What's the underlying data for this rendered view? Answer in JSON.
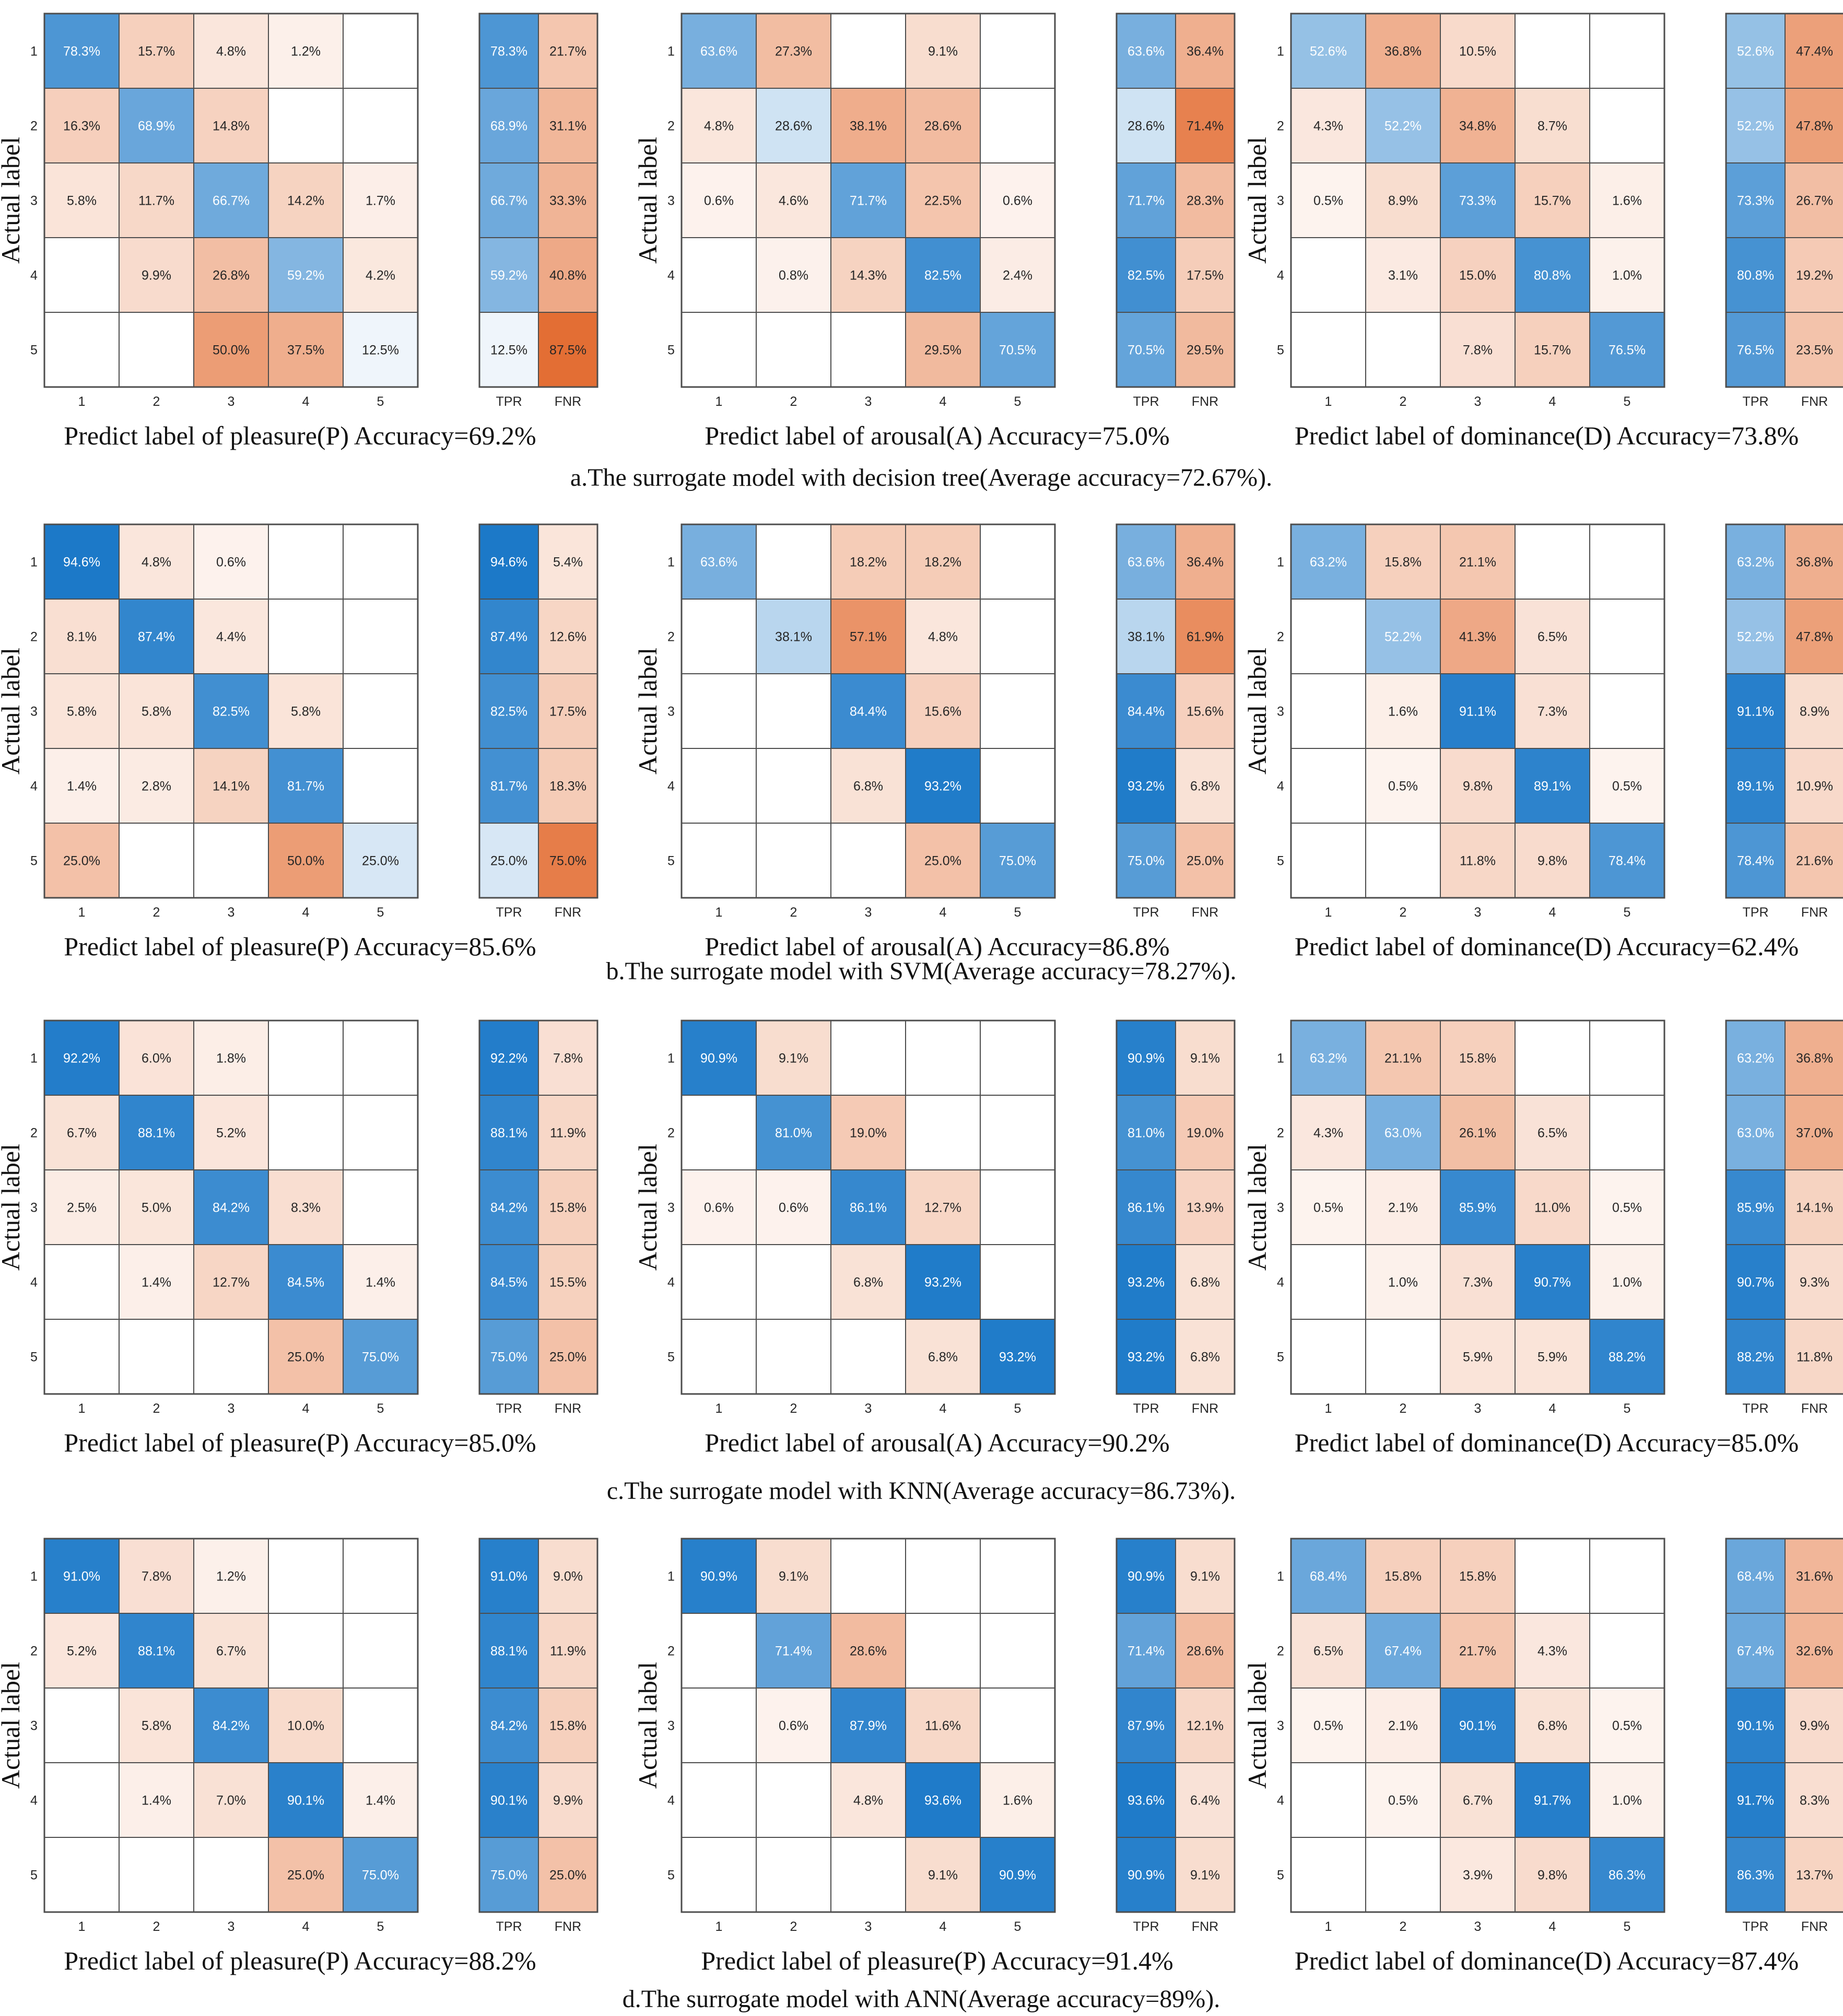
{
  "colors": {
    "blue": "#0b6fc4",
    "red": "#e06020",
    "grid": "#4d4d4d",
    "text_dark": "#262626",
    "text_light": "#ffffff"
  },
  "rate_labels": [
    "TPR",
    "FNR"
  ],
  "class_labels": [
    "1",
    "2",
    "3",
    "4",
    "5"
  ],
  "y_axis_label": "Actual label",
  "chart_data": [
    {
      "type": "heatmap",
      "row": "a",
      "title": "Predict label of  pleasure(P) Accuracy=69.2%",
      "xlabel": "Predict label of  pleasure(P) Accuracy=69.2%",
      "ylabel": "Actual label",
      "categories": [
        "1",
        "2",
        "3",
        "4",
        "5"
      ],
      "matrix": [
        [
          78.3,
          15.7,
          4.8,
          1.2,
          null
        ],
        [
          16.3,
          68.9,
          14.8,
          null,
          null
        ],
        [
          5.8,
          11.7,
          66.7,
          14.2,
          1.7
        ],
        [
          null,
          9.9,
          26.8,
          59.2,
          4.2
        ],
        [
          null,
          null,
          50.0,
          37.5,
          12.5
        ]
      ],
      "tpr": [
        78.3,
        68.9,
        66.7,
        59.2,
        12.5
      ],
      "fnr": [
        21.7,
        31.1,
        33.3,
        40.8,
        87.5
      ]
    },
    {
      "type": "heatmap",
      "row": "a",
      "title": "Predict label of  arousal(A) Accuracy=75.0%",
      "xlabel": "Predict label of  arousal(A) Accuracy=75.0%",
      "ylabel": "Actual label",
      "categories": [
        "1",
        "2",
        "3",
        "4",
        "5"
      ],
      "matrix": [
        [
          63.6,
          27.3,
          null,
          9.1,
          null
        ],
        [
          4.8,
          28.6,
          38.1,
          28.6,
          null
        ],
        [
          0.6,
          4.6,
          71.7,
          22.5,
          0.6
        ],
        [
          null,
          0.8,
          14.3,
          82.5,
          2.4
        ],
        [
          null,
          null,
          null,
          29.5,
          70.5
        ]
      ],
      "tpr": [
        63.6,
        28.6,
        71.7,
        82.5,
        70.5
      ],
      "fnr": [
        36.4,
        71.4,
        28.3,
        17.5,
        29.5
      ]
    },
    {
      "type": "heatmap",
      "row": "a",
      "title": "Predict label of  dominance(D) Accuracy=73.8%",
      "xlabel": "Predict label of  dominance(D) Accuracy=73.8%",
      "ylabel": "Actual label",
      "categories": [
        "1",
        "2",
        "3",
        "4",
        "5"
      ],
      "matrix": [
        [
          52.6,
          36.8,
          10.5,
          null,
          null
        ],
        [
          4.3,
          52.2,
          34.8,
          8.7,
          null
        ],
        [
          0.5,
          8.9,
          73.3,
          15.7,
          1.6
        ],
        [
          null,
          3.1,
          15.0,
          80.8,
          1.0
        ],
        [
          null,
          null,
          7.8,
          15.7,
          76.5
        ]
      ],
      "tpr": [
        52.6,
        52.2,
        73.3,
        80.8,
        76.5
      ],
      "fnr": [
        47.4,
        47.8,
        26.7,
        19.2,
        23.5
      ]
    },
    {
      "type": "heatmap",
      "row": "b",
      "title": "Predict label of  pleasure(P) Accuracy=85.6%",
      "xlabel": "Predict label of  pleasure(P) Accuracy=85.6%",
      "ylabel": "Actual label",
      "categories": [
        "1",
        "2",
        "3",
        "4",
        "5"
      ],
      "matrix": [
        [
          94.6,
          4.8,
          0.6,
          null,
          null
        ],
        [
          8.1,
          87.4,
          4.4,
          null,
          null
        ],
        [
          5.8,
          5.8,
          82.5,
          5.8,
          null
        ],
        [
          1.4,
          2.8,
          14.1,
          81.7,
          null
        ],
        [
          25.0,
          null,
          null,
          50.0,
          25.0
        ]
      ],
      "tpr": [
        94.6,
        87.4,
        82.5,
        81.7,
        25.0
      ],
      "fnr": [
        5.4,
        12.6,
        17.5,
        18.3,
        75.0
      ]
    },
    {
      "type": "heatmap",
      "row": "b",
      "title": "Predict label of  arousal(A) Accuracy=86.8%",
      "xlabel": "Predict label of  arousal(A) Accuracy=86.8%",
      "ylabel": "Actual label",
      "categories": [
        "1",
        "2",
        "3",
        "4",
        "5"
      ],
      "matrix": [
        [
          63.6,
          null,
          18.2,
          18.2,
          null
        ],
        [
          null,
          38.1,
          57.1,
          4.8,
          null
        ],
        [
          null,
          null,
          84.4,
          15.6,
          null
        ],
        [
          null,
          null,
          6.8,
          93.2,
          null
        ],
        [
          null,
          null,
          null,
          25.0,
          75.0
        ]
      ],
      "tpr": [
        63.6,
        38.1,
        84.4,
        93.2,
        75.0
      ],
      "fnr": [
        36.4,
        61.9,
        15.6,
        6.8,
        25.0
      ]
    },
    {
      "type": "heatmap",
      "row": "b",
      "title": "Predict label of  dominance(D) Accuracy=62.4%",
      "xlabel": "Predict label of  dominance(D) Accuracy=62.4%",
      "ylabel": "Actual label",
      "categories": [
        "1",
        "2",
        "3",
        "4",
        "5"
      ],
      "matrix": [
        [
          63.2,
          15.8,
          21.1,
          null,
          null
        ],
        [
          null,
          52.2,
          41.3,
          6.5,
          null
        ],
        [
          null,
          1.6,
          91.1,
          7.3,
          null
        ],
        [
          null,
          0.5,
          9.8,
          89.1,
          0.5
        ],
        [
          null,
          null,
          11.8,
          9.8,
          78.4
        ]
      ],
      "tpr": [
        63.2,
        52.2,
        91.1,
        89.1,
        78.4
      ],
      "fnr": [
        36.8,
        47.8,
        8.9,
        10.9,
        21.6
      ]
    },
    {
      "type": "heatmap",
      "row": "c",
      "title": "Predict label of  pleasure(P) Accuracy=85.0%",
      "xlabel": "Predict label of  pleasure(P) Accuracy=85.0%",
      "ylabel": "Actual label",
      "categories": [
        "1",
        "2",
        "3",
        "4",
        "5"
      ],
      "matrix": [
        [
          92.2,
          6.0,
          1.8,
          null,
          null
        ],
        [
          6.7,
          88.1,
          5.2,
          null,
          null
        ],
        [
          2.5,
          5.0,
          84.2,
          8.3,
          null
        ],
        [
          null,
          1.4,
          12.7,
          84.5,
          1.4
        ],
        [
          null,
          null,
          null,
          25.0,
          75.0
        ]
      ],
      "tpr": [
        92.2,
        88.1,
        84.2,
        84.5,
        75.0
      ],
      "fnr": [
        7.8,
        11.9,
        15.8,
        15.5,
        25.0
      ]
    },
    {
      "type": "heatmap",
      "row": "c",
      "title": "Predict label of  arousal(A) Accuracy=90.2%",
      "xlabel": "Predict label of  arousal(A) Accuracy=90.2%",
      "ylabel": "Actual label",
      "categories": [
        "1",
        "2",
        "3",
        "4",
        "5"
      ],
      "matrix": [
        [
          90.9,
          9.1,
          null,
          null,
          null
        ],
        [
          null,
          81.0,
          19.0,
          null,
          null
        ],
        [
          0.6,
          0.6,
          86.1,
          12.7,
          null
        ],
        [
          null,
          null,
          6.8,
          93.2,
          null
        ],
        [
          null,
          null,
          null,
          6.8,
          93.2
        ]
      ],
      "tpr": [
        90.9,
        81.0,
        86.1,
        93.2,
        93.2
      ],
      "fnr": [
        9.1,
        19.0,
        13.9,
        6.8,
        6.8
      ]
    },
    {
      "type": "heatmap",
      "row": "c",
      "title": "Predict label of  dominance(D) Accuracy=85.0%",
      "xlabel": "Predict label of  dominance(D) Accuracy=85.0%",
      "ylabel": "Actual label",
      "categories": [
        "1",
        "2",
        "3",
        "4",
        "5"
      ],
      "matrix": [
        [
          63.2,
          21.1,
          15.8,
          null,
          null
        ],
        [
          4.3,
          63.0,
          26.1,
          6.5,
          null
        ],
        [
          0.5,
          2.1,
          85.9,
          11.0,
          0.5
        ],
        [
          null,
          1.0,
          7.3,
          90.7,
          1.0
        ],
        [
          null,
          null,
          5.9,
          5.9,
          88.2
        ]
      ],
      "tpr": [
        63.2,
        63.0,
        85.9,
        90.7,
        88.2
      ],
      "fnr": [
        36.8,
        37.0,
        14.1,
        9.3,
        11.8
      ]
    },
    {
      "type": "heatmap",
      "row": "d",
      "title": "Predict label of  pleasure(P) Accuracy=88.2%",
      "xlabel": "Predict label of  pleasure(P) Accuracy=88.2%",
      "ylabel": "Actual label",
      "categories": [
        "1",
        "2",
        "3",
        "4",
        "5"
      ],
      "matrix": [
        [
          91.0,
          7.8,
          1.2,
          null,
          null
        ],
        [
          5.2,
          88.1,
          6.7,
          null,
          null
        ],
        [
          null,
          5.8,
          84.2,
          10.0,
          null
        ],
        [
          null,
          1.4,
          7.0,
          90.1,
          1.4
        ],
        [
          null,
          null,
          null,
          25.0,
          75.0
        ]
      ],
      "tpr": [
        91.0,
        88.1,
        84.2,
        90.1,
        75.0
      ],
      "fnr": [
        9.0,
        11.9,
        15.8,
        9.9,
        25.0
      ]
    },
    {
      "type": "heatmap",
      "row": "d",
      "title": "Predict label of  pleasure(P) Accuracy=91.4%",
      "xlabel": "Predict label of  pleasure(P) Accuracy=91.4%",
      "ylabel": "Actual label",
      "categories": [
        "1",
        "2",
        "3",
        "4",
        "5"
      ],
      "matrix": [
        [
          90.9,
          9.1,
          null,
          null,
          null
        ],
        [
          null,
          71.4,
          28.6,
          null,
          null
        ],
        [
          null,
          0.6,
          87.9,
          11.6,
          null
        ],
        [
          null,
          null,
          4.8,
          93.6,
          1.6
        ],
        [
          null,
          null,
          null,
          9.1,
          90.9
        ]
      ],
      "tpr": [
        90.9,
        71.4,
        87.9,
        93.6,
        90.9
      ],
      "fnr": [
        9.1,
        28.6,
        12.1,
        6.4,
        9.1
      ]
    },
    {
      "type": "heatmap",
      "row": "d",
      "title": "Predict label of  dominance(D) Accuracy=87.4%",
      "xlabel": "Predict label of  dominance(D) Accuracy=87.4%",
      "ylabel": "Actual label",
      "categories": [
        "1",
        "2",
        "3",
        "4",
        "5"
      ],
      "matrix": [
        [
          68.4,
          15.8,
          15.8,
          null,
          null
        ],
        [
          6.5,
          67.4,
          21.7,
          4.3,
          null
        ],
        [
          0.5,
          2.1,
          90.1,
          6.8,
          0.5
        ],
        [
          null,
          0.5,
          6.7,
          91.7,
          1.0
        ],
        [
          null,
          null,
          3.9,
          9.8,
          86.3
        ]
      ],
      "tpr": [
        68.4,
        67.4,
        90.1,
        91.7,
        86.3
      ],
      "fnr": [
        31.6,
        32.6,
        9.9,
        8.3,
        13.7
      ]
    }
  ],
  "captions": [
    {
      "prefix": "a.",
      "text": "The surrogate model with decision tree(Average accuracy=72.67%)."
    },
    {
      "prefix": "b.",
      "text": "The surrogate model with SVM(Average accuracy=78.27%)."
    },
    {
      "prefix": "c.",
      "text": "The surrogate model with KNN(Average accuracy=86.73%)."
    },
    {
      "prefix": "d.",
      "text": "The surrogate model with ANN(Average accuracy=89%)."
    }
  ]
}
